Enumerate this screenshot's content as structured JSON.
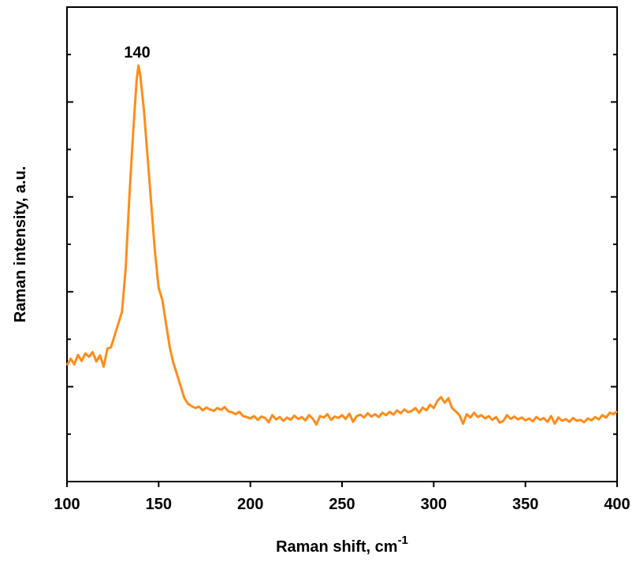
{
  "chart_data": {
    "type": "line",
    "xlabel": "Raman shift, cm",
    "xlabel_superscript": "-1",
    "ylabel": "Raman intensity, a.u.",
    "annotations": [
      {
        "text": "140",
        "x": 140
      }
    ],
    "color": "#ff8c1a",
    "xlim": [
      100,
      400
    ],
    "xticks": [
      100,
      150,
      200,
      250,
      300,
      350,
      400
    ],
    "ylim": [
      0,
      10
    ],
    "yticks": [
      1,
      2,
      3,
      4,
      5,
      6,
      7,
      8,
      9
    ],
    "x": [
      100,
      102,
      104,
      106,
      108,
      110,
      112,
      114,
      116,
      118,
      120,
      122,
      124,
      126,
      128,
      130,
      132,
      134,
      136,
      138,
      139,
      140,
      142,
      144,
      146,
      148,
      150,
      152,
      154,
      156,
      158,
      160,
      162,
      164,
      166,
      168,
      170,
      172,
      174,
      176,
      178,
      180,
      182,
      184,
      186,
      188,
      190,
      192,
      194,
      196,
      198,
      200,
      202,
      204,
      206,
      208,
      210,
      212,
      214,
      216,
      218,
      220,
      222,
      224,
      226,
      228,
      230,
      232,
      234,
      236,
      238,
      240,
      242,
      244,
      246,
      248,
      250,
      252,
      254,
      256,
      258,
      260,
      262,
      264,
      266,
      268,
      270,
      272,
      274,
      276,
      278,
      280,
      282,
      284,
      286,
      288,
      290,
      292,
      294,
      296,
      298,
      300,
      302,
      304,
      306,
      308,
      310,
      312,
      314,
      316,
      318,
      320,
      322,
      324,
      326,
      328,
      330,
      332,
      334,
      336,
      338,
      340,
      342,
      344,
      346,
      348,
      350,
      352,
      354,
      356,
      358,
      360,
      362,
      364,
      366,
      368,
      370,
      372,
      374,
      376,
      378,
      380,
      382,
      384,
      386,
      388,
      390,
      392,
      394,
      396,
      398,
      400
    ],
    "values": [
      2.45,
      2.59,
      2.47,
      2.67,
      2.54,
      2.7,
      2.63,
      2.73,
      2.53,
      2.66,
      2.42,
      2.8,
      2.83,
      3.08,
      3.33,
      3.58,
      4.49,
      5.99,
      7.31,
      8.47,
      8.77,
      8.55,
      7.81,
      6.82,
      5.82,
      4.83,
      4.08,
      3.83,
      3.33,
      2.84,
      2.5,
      2.26,
      2.01,
      1.76,
      1.64,
      1.59,
      1.55,
      1.58,
      1.5,
      1.56,
      1.52,
      1.49,
      1.55,
      1.51,
      1.57,
      1.48,
      1.46,
      1.42,
      1.47,
      1.38,
      1.36,
      1.33,
      1.38,
      1.3,
      1.37,
      1.34,
      1.25,
      1.4,
      1.31,
      1.36,
      1.28,
      1.35,
      1.3,
      1.39,
      1.32,
      1.36,
      1.29,
      1.4,
      1.33,
      1.2,
      1.38,
      1.35,
      1.42,
      1.3,
      1.37,
      1.34,
      1.4,
      1.32,
      1.43,
      1.26,
      1.38,
      1.41,
      1.35,
      1.44,
      1.37,
      1.42,
      1.36,
      1.45,
      1.4,
      1.47,
      1.41,
      1.5,
      1.44,
      1.52,
      1.46,
      1.49,
      1.55,
      1.45,
      1.56,
      1.5,
      1.62,
      1.55,
      1.7,
      1.78,
      1.66,
      1.76,
      1.55,
      1.48,
      1.4,
      1.22,
      1.42,
      1.35,
      1.45,
      1.36,
      1.4,
      1.33,
      1.38,
      1.3,
      1.36,
      1.24,
      1.28,
      1.4,
      1.32,
      1.37,
      1.31,
      1.35,
      1.29,
      1.33,
      1.27,
      1.36,
      1.3,
      1.34,
      1.26,
      1.38,
      1.22,
      1.35,
      1.28,
      1.32,
      1.26,
      1.34,
      1.28,
      1.3,
      1.25,
      1.33,
      1.29,
      1.36,
      1.31,
      1.4,
      1.35,
      1.45,
      1.42,
      1.48
    ]
  }
}
